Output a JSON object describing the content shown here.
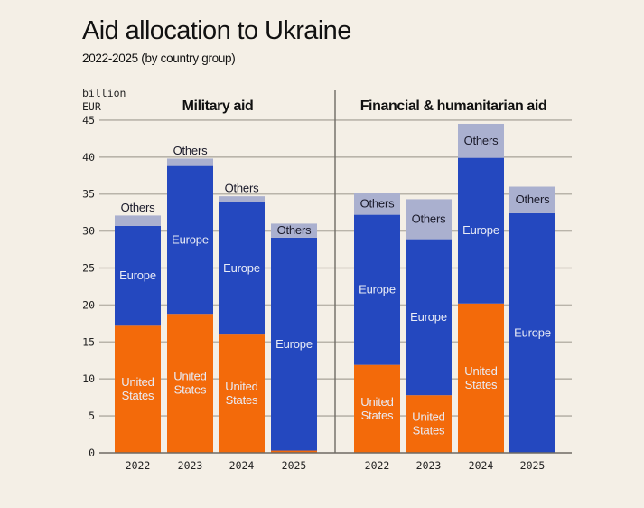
{
  "title": "Aid allocation to Ukraine",
  "subtitle": "2022-2025 (by country group)",
  "colors": {
    "background": "#f4efe6",
    "united_states": "#f36a0a",
    "europe": "#2448bf",
    "others": "#aab0cf",
    "grid": "#b9b4aa",
    "axis": "#6e6a64",
    "label_light": "#e9ecf6",
    "label_dark": "#1a1a2a"
  },
  "chart_data": {
    "type": "bar",
    "stacked": true,
    "title": "Aid allocation to Ukraine",
    "subtitle": "2022-2025 (by country group)",
    "ylabel": "billion EUR",
    "ylim": [
      0,
      45
    ],
    "yticks": [
      0,
      5,
      10,
      15,
      20,
      25,
      30,
      35,
      40,
      45
    ],
    "grid": true,
    "panels": [
      {
        "title": "Military aid",
        "categories": [
          "2022",
          "2023",
          "2024",
          "2025"
        ],
        "series": [
          {
            "name": "United States",
            "label": [
              "United",
              "States"
            ],
            "values": [
              17.2,
              18.8,
              16.0,
              0.3
            ]
          },
          {
            "name": "Europe",
            "label": [
              "Europe"
            ],
            "values": [
              13.5,
              20.0,
              17.9,
              28.8
            ]
          },
          {
            "name": "Others",
            "label": [
              "Others"
            ],
            "values": [
              1.4,
              1.0,
              0.8,
              1.9
            ]
          }
        ]
      },
      {
        "title": "Financial & humanitarian aid",
        "categories": [
          "2022",
          "2023",
          "2024",
          "2025"
        ],
        "series": [
          {
            "name": "United States",
            "label": [
              "United",
              "States"
            ],
            "values": [
              11.9,
              7.8,
              20.2,
              0.0
            ]
          },
          {
            "name": "Europe",
            "label": [
              "Europe"
            ],
            "values": [
              20.3,
              21.1,
              19.7,
              32.4
            ]
          },
          {
            "name": "Others",
            "label": [
              "Others"
            ],
            "values": [
              3.0,
              5.4,
              4.6,
              3.6
            ]
          }
        ]
      }
    ]
  }
}
